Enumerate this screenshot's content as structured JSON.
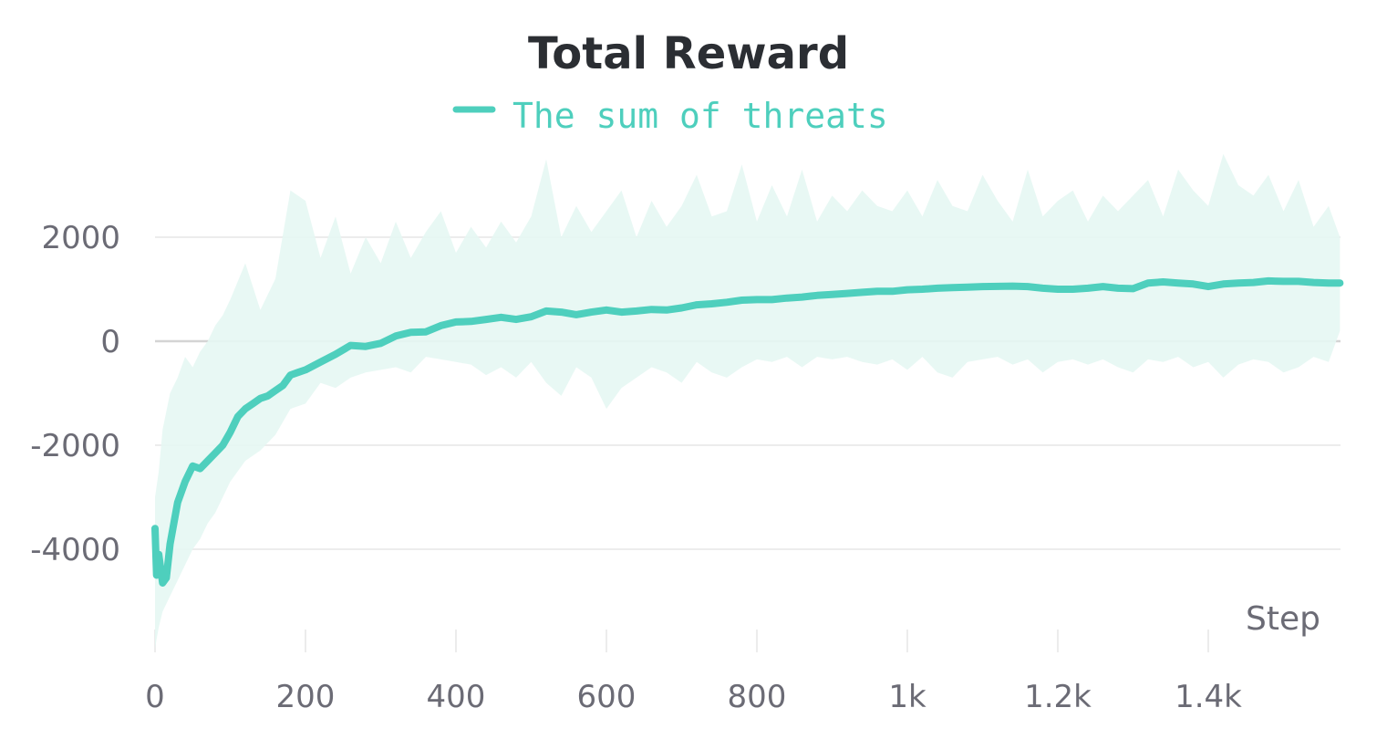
{
  "chart_data": {
    "type": "line",
    "title": "Total Reward",
    "xlabel": "Step",
    "ylabel": "",
    "xlim": [
      0,
      1580
    ],
    "ylim": [
      -5900,
      3600
    ],
    "x_ticks": [
      {
        "value": 0,
        "label": "0"
      },
      {
        "value": 200,
        "label": "200"
      },
      {
        "value": 400,
        "label": "400"
      },
      {
        "value": 600,
        "label": "600"
      },
      {
        "value": 800,
        "label": "800"
      },
      {
        "value": 1000,
        "label": "1k"
      },
      {
        "value": 1200,
        "label": "1.2k"
      },
      {
        "value": 1400,
        "label": "1.4k"
      }
    ],
    "y_ticks": [
      {
        "value": 2000,
        "label": "2000"
      },
      {
        "value": 0,
        "label": "0"
      },
      {
        "value": -2000,
        "label": "-2000"
      },
      {
        "value": -4000,
        "label": "-4000"
      }
    ],
    "grid": true,
    "legend_position": "top-center",
    "colors": {
      "series": "#4ecfbd",
      "band": "#e6f7f3",
      "grid": "#ececec",
      "zero_line": "#d4d4d4"
    },
    "series": [
      {
        "name": "The sum of threats",
        "x": [
          0,
          2,
          5,
          10,
          15,
          20,
          30,
          40,
          50,
          60,
          70,
          80,
          90,
          100,
          110,
          120,
          130,
          140,
          150,
          160,
          170,
          180,
          190,
          200,
          220,
          240,
          260,
          280,
          300,
          320,
          340,
          360,
          380,
          400,
          420,
          440,
          460,
          480,
          500,
          520,
          540,
          560,
          580,
          600,
          620,
          640,
          660,
          680,
          700,
          720,
          740,
          760,
          780,
          800,
          820,
          840,
          860,
          880,
          900,
          920,
          940,
          960,
          980,
          1000,
          1020,
          1040,
          1060,
          1080,
          1100,
          1120,
          1140,
          1160,
          1180,
          1200,
          1220,
          1240,
          1260,
          1280,
          1300,
          1320,
          1340,
          1360,
          1380,
          1400,
          1420,
          1440,
          1460,
          1480,
          1500,
          1520,
          1540,
          1560,
          1575
        ],
        "values": [
          -3600,
          -4500,
          -4100,
          -4650,
          -4550,
          -3900,
          -3100,
          -2700,
          -2400,
          -2450,
          -2300,
          -2150,
          -2000,
          -1750,
          -1450,
          -1300,
          -1200,
          -1100,
          -1050,
          -950,
          -850,
          -650,
          -600,
          -550,
          -400,
          -250,
          -80,
          -100,
          -40,
          100,
          170,
          180,
          300,
          370,
          380,
          420,
          460,
          420,
          470,
          580,
          560,
          510,
          560,
          600,
          560,
          580,
          610,
          600,
          640,
          700,
          720,
          750,
          790,
          800,
          800,
          830,
          850,
          880,
          900,
          920,
          940,
          960,
          960,
          990,
          1000,
          1020,
          1030,
          1040,
          1050,
          1055,
          1060,
          1050,
          1020,
          1000,
          1000,
          1020,
          1050,
          1020,
          1010,
          1120,
          1140,
          1120,
          1100,
          1050,
          1100,
          1120,
          1130,
          1160,
          1150,
          1150,
          1130,
          1120,
          1120
        ]
      }
    ],
    "variance_band": {
      "x": [
        0,
        5,
        10,
        20,
        30,
        40,
        50,
        60,
        70,
        80,
        90,
        100,
        120,
        140,
        160,
        180,
        200,
        220,
        240,
        260,
        280,
        300,
        320,
        340,
        360,
        380,
        400,
        420,
        440,
        460,
        480,
        500,
        520,
        540,
        560,
        580,
        600,
        620,
        640,
        660,
        680,
        700,
        720,
        740,
        760,
        780,
        800,
        820,
        840,
        860,
        880,
        900,
        920,
        940,
        960,
        980,
        1000,
        1020,
        1040,
        1060,
        1080,
        1100,
        1120,
        1140,
        1160,
        1180,
        1200,
        1220,
        1240,
        1260,
        1280,
        1300,
        1320,
        1340,
        1360,
        1380,
        1400,
        1420,
        1440,
        1460,
        1480,
        1500,
        1520,
        1540,
        1560,
        1575
      ],
      "upper": [
        -3000,
        -2500,
        -1700,
        -1000,
        -700,
        -300,
        -500,
        -200,
        0,
        300,
        500,
        800,
        1500,
        600,
        1200,
        2900,
        2700,
        1600,
        2400,
        1300,
        2000,
        1500,
        2300,
        1600,
        2100,
        2500,
        1700,
        2200,
        1800,
        2300,
        1900,
        2400,
        3500,
        2000,
        2600,
        2100,
        2500,
        2900,
        2000,
        2700,
        2200,
        2600,
        3200,
        2400,
        2500,
        3400,
        2300,
        3000,
        2400,
        3300,
        2300,
        2800,
        2500,
        2900,
        2600,
        2500,
        2900,
        2400,
        3100,
        2600,
        2500,
        3200,
        2700,
        2300,
        3300,
        2400,
        2700,
        2900,
        2300,
        2800,
        2500,
        2800,
        3100,
        2400,
        3300,
        2900,
        2600,
        3600,
        3000,
        2800,
        3200,
        2500,
        3100,
        2200,
        2600,
        2000
      ],
      "lower": [
        -5900,
        -5500,
        -5200,
        -4900,
        -4600,
        -4300,
        -4000,
        -3800,
        -3500,
        -3300,
        -3000,
        -2700,
        -2300,
        -2100,
        -1800,
        -1300,
        -1200,
        -800,
        -900,
        -700,
        -600,
        -550,
        -500,
        -600,
        -300,
        -350,
        -400,
        -450,
        -650,
        -500,
        -700,
        -400,
        -800,
        -1050,
        -500,
        -700,
        -1300,
        -900,
        -700,
        -500,
        -600,
        -800,
        -400,
        -600,
        -700,
        -500,
        -350,
        -400,
        -300,
        -500,
        -300,
        -350,
        -300,
        -400,
        -450,
        -350,
        -550,
        -300,
        -600,
        -700,
        -400,
        -350,
        -300,
        -450,
        -350,
        -600,
        -400,
        -350,
        -450,
        -350,
        -500,
        -600,
        -350,
        -400,
        -300,
        -500,
        -400,
        -700,
        -450,
        -350,
        -400,
        -600,
        -500,
        -300,
        -400,
        200
      ]
    }
  }
}
